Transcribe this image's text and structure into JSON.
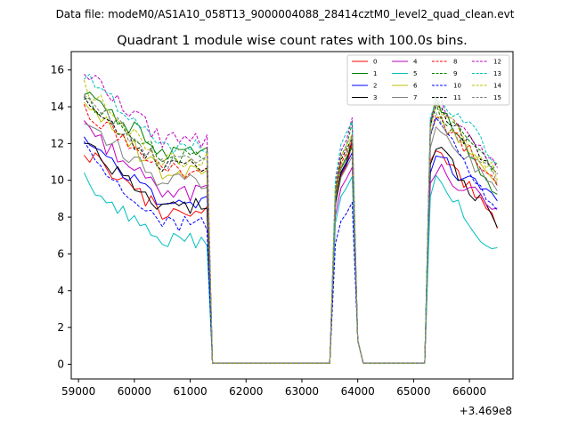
{
  "chart_data": {
    "type": "line",
    "suptitle": "Data file: modeM0/AS1A10_058T13_9000004088_28414cztM0_level2_quad_clean.evt",
    "title": "Quadrant 1 module wise count rates with 100.0s bins.",
    "xlabel": "",
    "ylabel": "",
    "x_offset_label": "+3.469e8",
    "xlim": [
      58870,
      66780
    ],
    "ylim": [
      -0.8,
      17.0
    ],
    "x_ticks": [
      59000,
      60000,
      61000,
      62000,
      63000,
      64000,
      65000,
      66000
    ],
    "x_tick_labels": [
      "59000",
      "60000",
      "61000",
      "62000",
      "63000",
      "64000",
      "65000",
      "66000"
    ],
    "y_ticks": [
      0,
      2,
      4,
      6,
      8,
      10,
      12,
      14,
      16
    ],
    "y_tick_labels": [
      "0",
      "2",
      "4",
      "6",
      "8",
      "10",
      "12",
      "14",
      "16"
    ],
    "legend": {
      "position": "top-right",
      "columns": 4
    },
    "segments": [
      {
        "x_start": 59100,
        "step": 100,
        "count": 23
      },
      {
        "x_start": 61400,
        "step": 100,
        "count": 21
      },
      {
        "x_start": 63500,
        "step": 100,
        "count": 6
      },
      {
        "x_start": 64100,
        "step": 100,
        "count": 12
      },
      {
        "x_start": 65300,
        "step": 100,
        "count": 13
      }
    ],
    "active": [
      {
        "start": 59100,
        "end": 61300,
        "gap": 0,
        "gapEnd": 0
      },
      {
        "start": 63600,
        "end": 63900,
        "gap": 0,
        "gapEnd": 0
      },
      {
        "start": 65300,
        "end": 66500,
        "gap": 0,
        "gapEnd": 0
      }
    ],
    "series": [
      {
        "name": "0",
        "color": "#ff0000",
        "dash": "solid",
        "level": 8.3,
        "start": 11.6,
        "peak2": 10.8,
        "peak3": 12.0,
        "end": 7.6
      },
      {
        "name": "1",
        "color": "#008000",
        "dash": "solid",
        "level": 11.6,
        "start": 14.9,
        "peak2": 11.2,
        "peak3": 14.2,
        "end": 8.8
      },
      {
        "name": "2",
        "color": "#0000ff",
        "dash": "solid",
        "level": 8.9,
        "start": 12.3,
        "peak2": 10.9,
        "peak3": 11.3,
        "end": 8.8
      },
      {
        "name": "3",
        "color": "#000000",
        "dash": "solid",
        "level": 8.6,
        "start": 12.0,
        "peak2": 11.0,
        "peak3": 11.8,
        "end": 7.7
      },
      {
        "name": "4",
        "color": "#bf00bf",
        "dash": "solid",
        "level": 9.3,
        "start": 12.9,
        "peak2": 10.1,
        "peak3": 10.7,
        "end": 8.5
      },
      {
        "name": "5",
        "color": "#00bfbf",
        "dash": "solid",
        "level": 6.7,
        "start": 10.1,
        "peak2": 9.6,
        "peak3": 9.9,
        "end": 6.0
      },
      {
        "name": "6",
        "color": "#bfbf00",
        "dash": "solid",
        "level": 10.4,
        "start": 14.4,
        "peak2": 11.3,
        "peak3": 13.5,
        "end": 9.5
      },
      {
        "name": "7",
        "color": "#808080",
        "dash": "solid",
        "level": 9.9,
        "start": 13.3,
        "peak2": 10.7,
        "peak3": 12.8,
        "end": 9.4
      },
      {
        "name": "8",
        "color": "#ff0000",
        "dash": "dashed",
        "level": 10.5,
        "start": 13.9,
        "peak2": 11.5,
        "peak3": 13.6,
        "end": 9.9
      },
      {
        "name": "9",
        "color": "#008000",
        "dash": "dashed",
        "level": 11.3,
        "start": 14.5,
        "peak2": 11.9,
        "peak3": 14.0,
        "end": 10.6
      },
      {
        "name": "10",
        "color": "#0000ff",
        "dash": "dashed",
        "level": 7.6,
        "start": 11.9,
        "peak2": 8.2,
        "peak3": 13.5,
        "end": 8.3
      },
      {
        "name": "11",
        "color": "#000000",
        "dash": "dashed",
        "level": 10.9,
        "start": 14.4,
        "peak2": 11.7,
        "peak3": 14.1,
        "end": 10.3
      },
      {
        "name": "12",
        "color": "#bf00bf",
        "dash": "dashed",
        "level": 12.2,
        "start": 16.1,
        "peak2": 12.2,
        "peak3": 14.4,
        "end": 11.0
      },
      {
        "name": "13",
        "color": "#00bfbf",
        "dash": "dashed",
        "level": 11.9,
        "start": 15.9,
        "peak2": 12.6,
        "peak3": 14.6,
        "end": 11.2
      },
      {
        "name": "14",
        "color": "#bfbf00",
        "dash": "dashed",
        "level": 11.1,
        "start": 15.1,
        "peak2": 11.9,
        "peak3": 13.9,
        "end": 10.3
      },
      {
        "name": "15",
        "color": "#808080",
        "dash": "dashed",
        "level": 10.9,
        "start": 14.7,
        "peak2": 11.3,
        "peak3": 13.5,
        "end": 10.0
      }
    ]
  }
}
